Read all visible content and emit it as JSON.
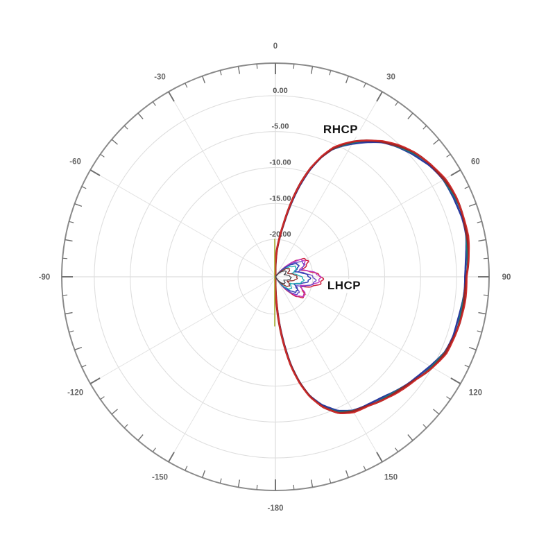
{
  "chart_data": {
    "type": "polar",
    "title": "",
    "description": "Antenna radiation pattern, RHCP co-pol main lobe and LHCP cross-pol lobes, multiple overlaid frequency traces",
    "angular_axis": {
      "unit": "deg",
      "minor_tick_step": 5,
      "medium_tick_step": 10,
      "label_step": 30,
      "labels": [
        {
          "angle": 0,
          "text": "0"
        },
        {
          "angle": 30,
          "text": "30"
        },
        {
          "angle": 60,
          "text": "60"
        },
        {
          "angle": 90,
          "text": "90"
        },
        {
          "angle": 120,
          "text": "120"
        },
        {
          "angle": 150,
          "text": "150"
        },
        {
          "angle": -180,
          "text": "-180"
        },
        {
          "angle": -150,
          "text": "-150"
        },
        {
          "angle": -120,
          "text": "-120"
        },
        {
          "angle": -90,
          "text": "-90"
        },
        {
          "angle": -60,
          "text": "-60"
        },
        {
          "angle": -30,
          "text": "-30"
        }
      ]
    },
    "radial_axis": {
      "unit": "dB",
      "ring_values": [
        0,
        -5,
        -10,
        -15,
        -20
      ],
      "ring_labels": [
        "0.00",
        "-5.00",
        "-10.00",
        "-15.00",
        "-20.00"
      ],
      "center_value": -25,
      "grid": true
    },
    "colors": {
      "ring_grid": "#dedede",
      "spoke_grid": "#e3e3e3",
      "spoke_main": "#d6d6d6",
      "axis_circle": "#8a8a8a",
      "ticks": "#6e6e6e",
      "angle_labels": "#666666",
      "radial_labels": "#555555",
      "annotation_text": "#141414"
    },
    "series": [
      {
        "name": "RHCP",
        "points_theta_db": [
          [
            0,
            -24
          ],
          [
            3,
            -21.5
          ],
          [
            6,
            -19.8
          ],
          [
            9,
            -17.6
          ],
          [
            12,
            -14.7
          ],
          [
            15,
            -11.8
          ],
          [
            18,
            -9.3
          ],
          [
            21,
            -7.3
          ],
          [
            24,
            -5.7
          ],
          [
            27,
            -4.6
          ],
          [
            30,
            -3.6
          ],
          [
            34,
            -2.4
          ],
          [
            38,
            -1.3
          ],
          [
            43,
            -0.3
          ],
          [
            48,
            0.6
          ],
          [
            54,
            1.4
          ],
          [
            60,
            1.9
          ],
          [
            66,
            2.15
          ],
          [
            72,
            2.2
          ],
          [
            78,
            2.05
          ],
          [
            84,
            1.7
          ],
          [
            90,
            1.35
          ],
          [
            96,
            1.25
          ],
          [
            102,
            1.15
          ],
          [
            108,
            1.05
          ],
          [
            114,
            0.7
          ],
          [
            120,
            -0.1
          ],
          [
            126,
            -1.0
          ],
          [
            132,
            -1.8
          ],
          [
            138,
            -2.5
          ],
          [
            144,
            -3.1
          ],
          [
            150,
            -3.6
          ],
          [
            155,
            -4.4
          ],
          [
            160,
            -6.0
          ],
          [
            164,
            -7.9
          ],
          [
            167,
            -10.0
          ],
          [
            170,
            -12.6
          ],
          [
            173,
            -16.0
          ],
          [
            176,
            -19.5
          ],
          [
            178,
            -22
          ],
          [
            180,
            -24
          ]
        ],
        "back_half_db": -25,
        "traces": [
          {
            "color": "#2b3a9e",
            "width": 2.6,
            "db_offset": -0.18
          },
          {
            "color": "#147f7f",
            "width": 1.9,
            "db_offset": -0.05
          },
          {
            "color": "#9c2424",
            "width": 3.0,
            "db_offset": 0.05
          },
          {
            "color": "#d12b2b",
            "width": 1.7,
            "db_offset": 0.16
          }
        ]
      },
      {
        "name": "LHCP",
        "model": {
          "theta_start": 38,
          "theta_end": 148,
          "petal_centers_deg": [
            58,
            94,
            130
          ],
          "tip_db": -18.6,
          "notch_db": -21.1
        },
        "traces": [
          {
            "color": "#d02445",
            "width": 1.6,
            "scale": 1.0,
            "rot": 0
          },
          {
            "color": "#c238c2",
            "width": 1.4,
            "scale": 0.95,
            "rot": 2
          },
          {
            "color": "#6a4fc9",
            "width": 1.4,
            "scale": 0.85,
            "rot": -2
          },
          {
            "color": "#2e3fb2",
            "width": 1.5,
            "scale": 0.73,
            "rot": 1
          },
          {
            "color": "#28afb7",
            "width": 1.4,
            "scale": 0.6,
            "rot": -3
          },
          {
            "color": "#8e2b2b",
            "width": 1.3,
            "scale": 0.46,
            "rot": 2
          },
          {
            "color": "#45454c",
            "width": 1.2,
            "scale": 0.33,
            "rot": 0
          }
        ]
      },
      {
        "name": "near-axis-trace",
        "color": "#a4ae2f",
        "width": 1.6,
        "above_db": -19.9,
        "below_db": -18.3
      }
    ],
    "annotations": [
      {
        "text": "RHCP",
        "x": 491,
        "y": 187
      },
      {
        "text": "LHCP",
        "x": 496,
        "y": 412
      }
    ]
  }
}
